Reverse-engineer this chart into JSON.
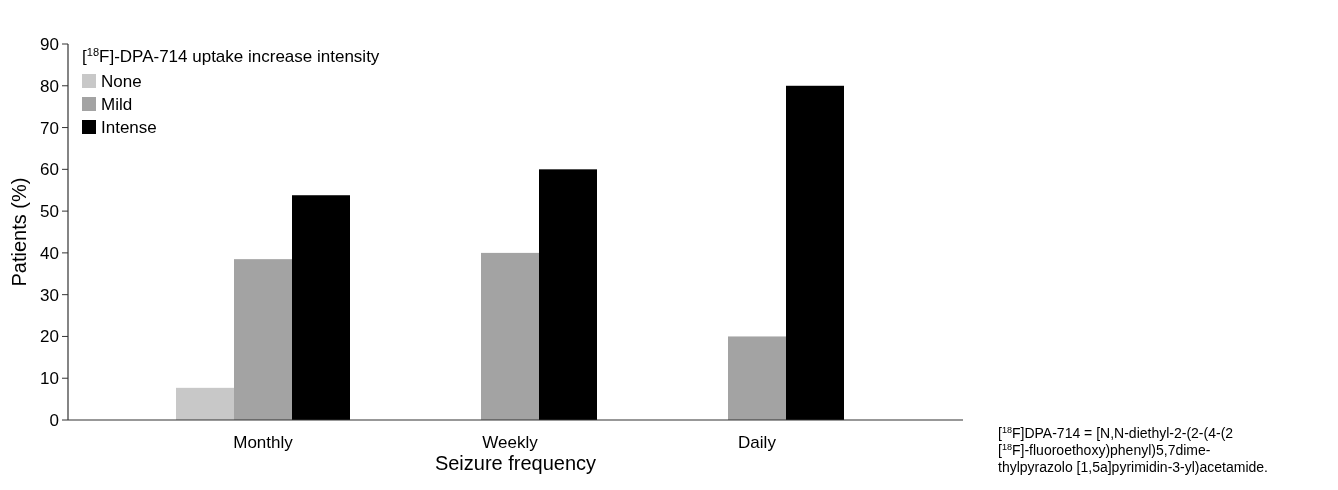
{
  "chart_data": {
    "type": "bar",
    "xlabel": "Seizure frequency",
    "ylabel": "Patients (%)",
    "legend_title": "[$^{18}$F]-DPA-714 uptake increase intensity",
    "categories": [
      "Monthly",
      "Weekly",
      "Daily"
    ],
    "series": [
      {
        "name": "None",
        "color": "#c8c8c8",
        "values": [
          7.7,
          0,
          0
        ]
      },
      {
        "name": "Mild",
        "color": "#a3a3a3",
        "values": [
          38.5,
          40,
          20
        ]
      },
      {
        "name": "Intense",
        "color": "#000000",
        "values": [
          53.8,
          60,
          80
        ]
      }
    ],
    "ylim": [
      0,
      90
    ],
    "yticks": [
      0,
      10,
      20,
      30,
      40,
      50,
      60,
      70,
      80,
      90
    ],
    "grid": false,
    "legend": "top left",
    "annotations": [
      "[$^{18}$F]DPA-714  =  [N,N-diethyl-2-(2-(4-(2\n[$^{18}$F]-fluoroethoxy)phenyl)5,7dime-\nthylpyrazolo [1,5a]pyrimidin-3-yl)acetamide."
    ]
  }
}
